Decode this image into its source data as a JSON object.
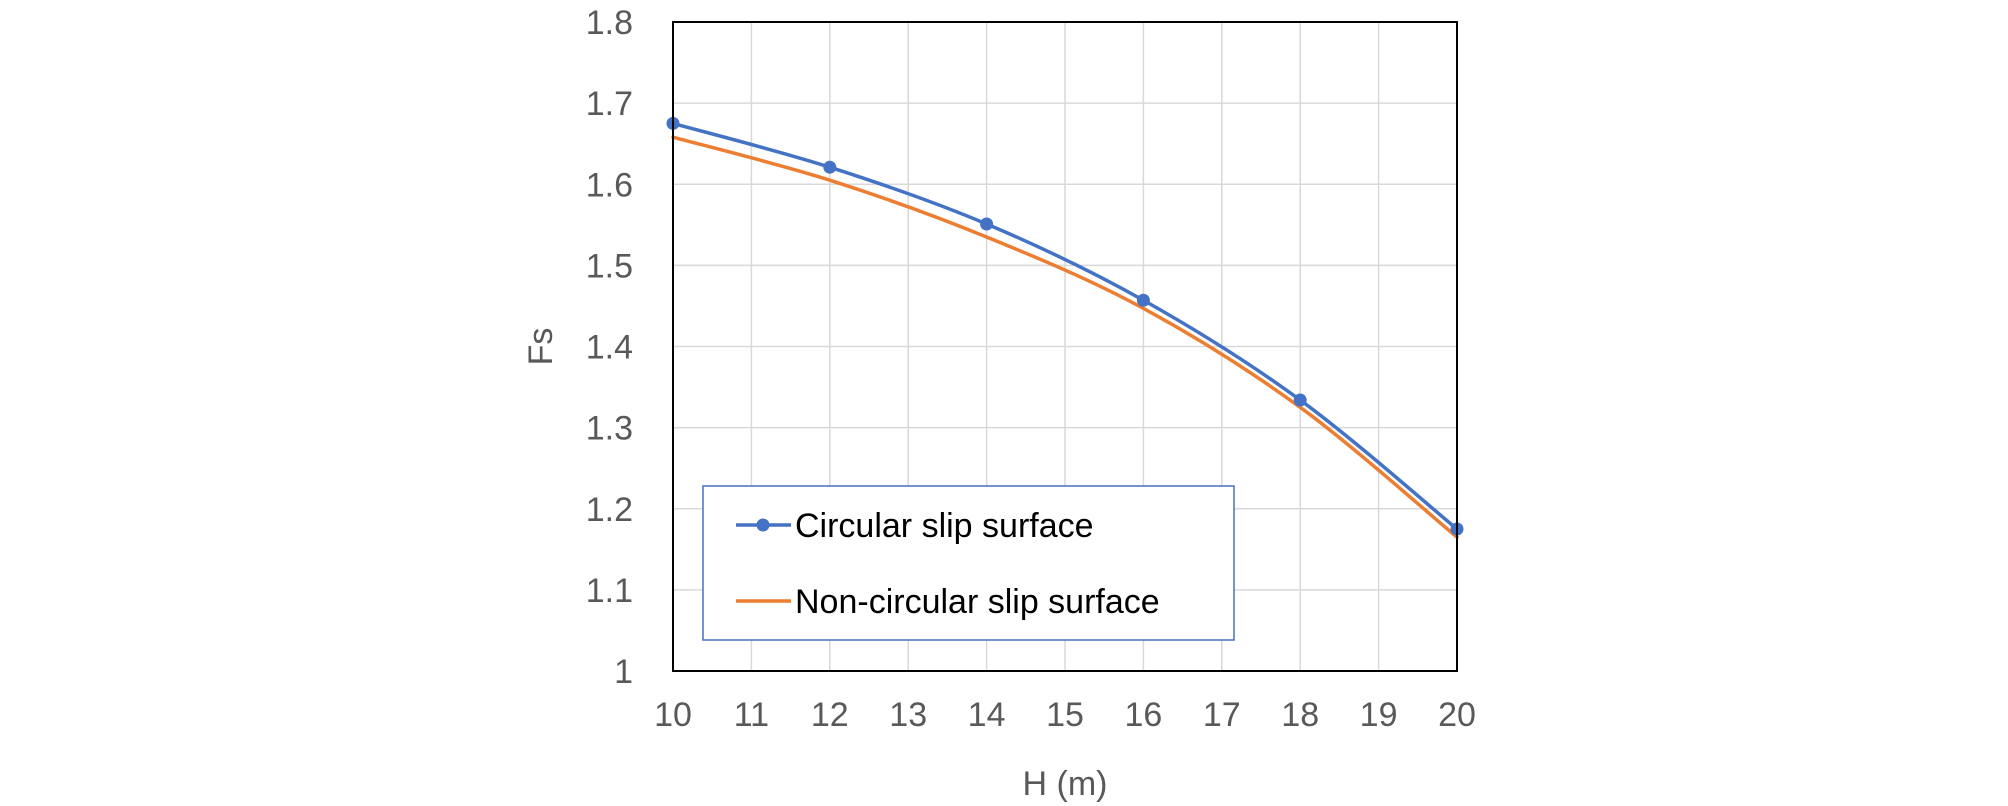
{
  "chart_data": {
    "type": "line",
    "xlabel": "H (m)",
    "ylabel": "Fs",
    "xlim": [
      10,
      20
    ],
    "ylim": [
      1,
      1.8
    ],
    "x_ticks": [
      "10",
      "11",
      "12",
      "13",
      "14",
      "15",
      "16",
      "17",
      "18",
      "19",
      "20"
    ],
    "y_ticks": [
      "1",
      "1.1",
      "1.2",
      "1.3",
      "1.4",
      "1.5",
      "1.6",
      "1.7",
      "1.8"
    ],
    "grid": true,
    "legend_position": "bottom-left",
    "series": [
      {
        "name": "Circular slip surface",
        "color": "#4472C4",
        "marker": "circle",
        "smooth": true,
        "x": [
          10,
          12,
          14,
          16,
          18,
          20
        ],
        "y": [
          1.675,
          1.621,
          1.551,
          1.457,
          1.334,
          1.175
        ]
      },
      {
        "name": "Non-circular slip surface",
        "color": "#ED7D31",
        "marker": "none",
        "smooth": true,
        "x": [
          10,
          12,
          14,
          16,
          18,
          20
        ],
        "y": [
          1.658,
          1.605,
          1.535,
          1.447,
          1.325,
          1.165
        ]
      }
    ]
  }
}
